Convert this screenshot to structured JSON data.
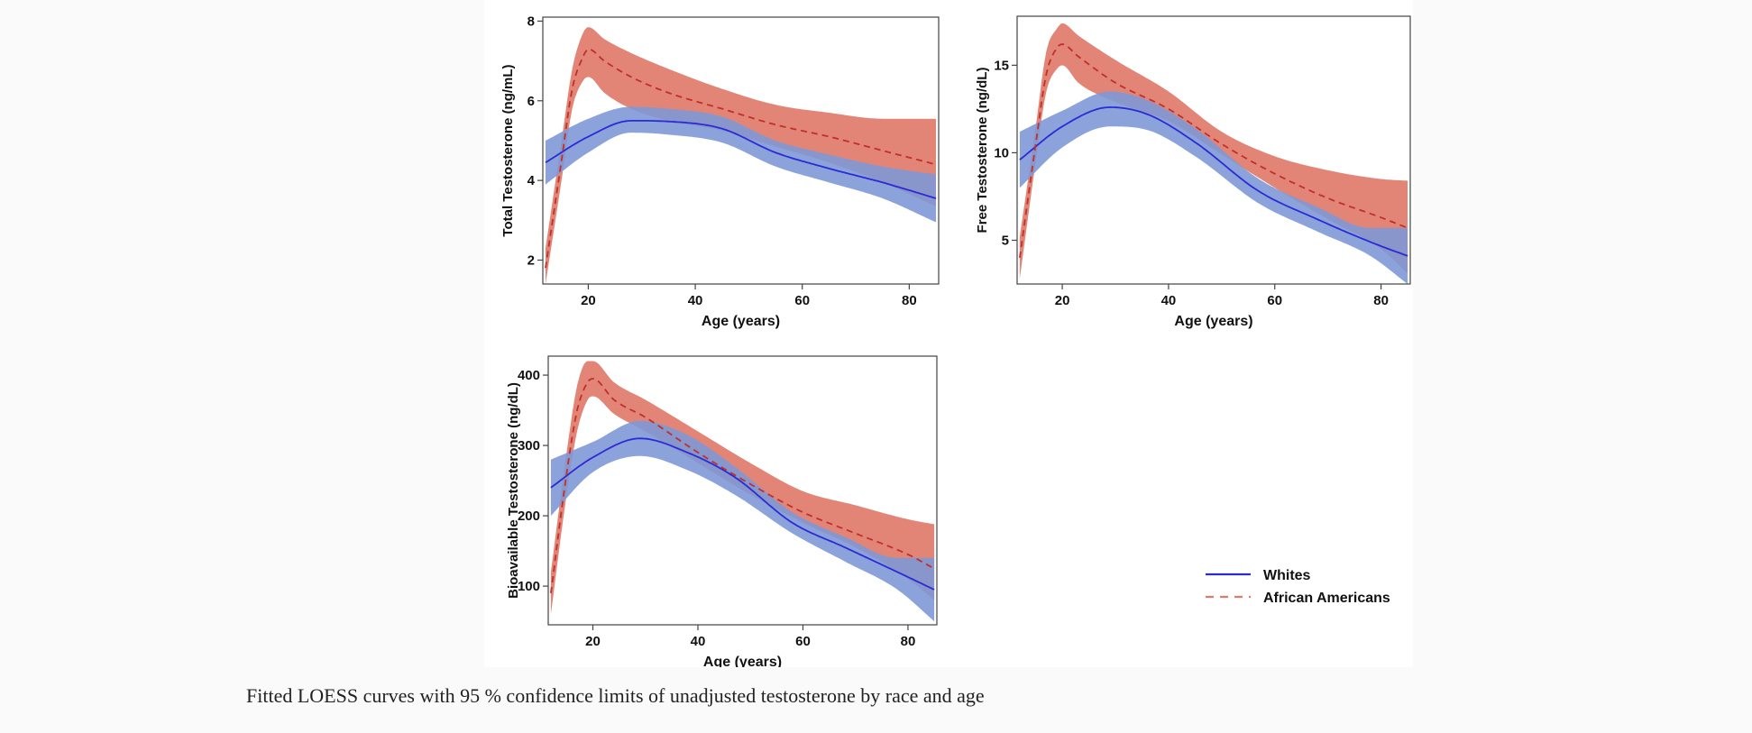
{
  "caption": "Fitted LOESS curves with 95 % confidence limits of unadjusted testosterone by race and age",
  "colors": {
    "whites_line": "#2b2bd6",
    "whites_band": "#7f98d6",
    "aa_line": "#c0302a",
    "aa_band": "#e07b6a"
  },
  "legend": {
    "whites": "Whites",
    "african_americans": "African Americans"
  },
  "chart_data": [
    {
      "id": "total",
      "type": "line",
      "title": "",
      "xlabel": "Age (years)",
      "ylabel": "Total Testosterone (ng/mL)",
      "xlim": [
        11.5,
        85.5
      ],
      "ylim": [
        1.4,
        8.1
      ],
      "xticks": [
        20,
        40,
        60,
        80
      ],
      "yticks": [
        2,
        4,
        6,
        8
      ],
      "grid": false,
      "series": [
        {
          "name": "Whites",
          "x": [
            12,
            20,
            28,
            35,
            45,
            55,
            65,
            75,
            85
          ],
          "y": [
            4.45,
            5.1,
            5.5,
            5.48,
            5.3,
            4.7,
            4.3,
            3.95,
            3.55
          ],
          "lower": [
            3.9,
            4.7,
            5.2,
            5.15,
            4.95,
            4.35,
            3.95,
            3.55,
            2.95
          ],
          "upper": [
            5.0,
            5.55,
            5.85,
            5.8,
            5.6,
            5.0,
            4.65,
            4.35,
            4.15
          ]
        },
        {
          "name": "African Americans",
          "x": [
            12,
            15,
            17,
            19,
            20,
            23,
            28,
            35,
            45,
            55,
            65,
            75,
            85
          ],
          "y": [
            1.8,
            4.5,
            6.3,
            7.1,
            7.3,
            7.0,
            6.6,
            6.2,
            5.8,
            5.4,
            5.1,
            4.75,
            4.4
          ],
          "lower": [
            1.4,
            4.0,
            5.8,
            6.5,
            6.6,
            6.2,
            5.8,
            5.5,
            5.25,
            4.85,
            4.45,
            3.95,
            3.35
          ],
          "upper": [
            2.3,
            5.0,
            6.8,
            7.7,
            7.85,
            7.55,
            7.2,
            6.8,
            6.3,
            5.9,
            5.7,
            5.55,
            5.55
          ]
        }
      ]
    },
    {
      "id": "free",
      "type": "line",
      "title": "",
      "xlabel": "Age (years)",
      "ylabel": "Free Testosterone (ng/dL)",
      "xlim": [
        11.5,
        85.5
      ],
      "ylim": [
        2.5,
        17.8
      ],
      "xticks": [
        20,
        40,
        60,
        80
      ],
      "yticks": [
        5,
        10,
        15
      ],
      "grid": false,
      "series": [
        {
          "name": "Whites",
          "x": [
            12,
            20,
            29,
            36,
            45,
            57,
            68,
            78,
            85
          ],
          "y": [
            9.6,
            11.5,
            12.6,
            12.2,
            10.6,
            7.8,
            6.2,
            4.9,
            4.1
          ],
          "lower": [
            8.0,
            10.3,
            11.5,
            11.3,
            9.8,
            7.1,
            5.5,
            4.1,
            2.5
          ],
          "upper": [
            11.2,
            12.4,
            13.5,
            13.0,
            11.4,
            8.5,
            6.9,
            5.7,
            5.7
          ]
        },
        {
          "name": "African Americans",
          "x": [
            12,
            15,
            17,
            19,
            20,
            23,
            30,
            40,
            50,
            60,
            70,
            80,
            85
          ],
          "y": [
            4.0,
            10.5,
            14.5,
            16.0,
            16.2,
            15.5,
            14.0,
            12.5,
            10.5,
            8.8,
            7.4,
            6.3,
            5.7
          ],
          "lower": [
            2.8,
            9.5,
            13.5,
            14.8,
            15.0,
            14.0,
            12.9,
            11.8,
            9.9,
            8.0,
            6.2,
            4.5,
            3.1
          ],
          "upper": [
            5.2,
            11.5,
            15.8,
            17.1,
            17.4,
            16.7,
            15.3,
            13.5,
            11.2,
            9.8,
            9.0,
            8.5,
            8.4
          ]
        }
      ]
    },
    {
      "id": "bioavailable",
      "type": "line",
      "title": "",
      "xlabel": "Age (years)",
      "ylabel": "Bioavailable Testosterone (ng/dL)",
      "xlim": [
        11.5,
        85.5
      ],
      "ylim": [
        45,
        427
      ],
      "xticks": [
        20,
        40,
        60,
        80
      ],
      "yticks": [
        100,
        200,
        300,
        400
      ],
      "grid": false,
      "series": [
        {
          "name": "Whites",
          "x": [
            12,
            20,
            29,
            38,
            47,
            58,
            68,
            78,
            85
          ],
          "y": [
            240,
            283,
            310,
            290,
            255,
            190,
            155,
            120,
            95
          ],
          "lower": [
            200,
            262,
            285,
            265,
            230,
            175,
            135,
            95,
            50
          ],
          "upper": [
            280,
            305,
            335,
            315,
            270,
            205,
            170,
            140,
            140
          ]
        },
        {
          "name": "African Americans",
          "x": [
            12,
            15,
            17,
            19,
            20,
            24,
            30,
            40,
            50,
            60,
            70,
            80,
            85
          ],
          "y": [
            90,
            260,
            350,
            390,
            395,
            365,
            340,
            290,
            245,
            205,
            175,
            145,
            125
          ],
          "lower": [
            60,
            230,
            320,
            365,
            370,
            345,
            320,
            275,
            230,
            190,
            155,
            110,
            80
          ],
          "upper": [
            120,
            290,
            385,
            420,
            420,
            390,
            365,
            320,
            275,
            235,
            215,
            195,
            188
          ]
        }
      ]
    }
  ]
}
